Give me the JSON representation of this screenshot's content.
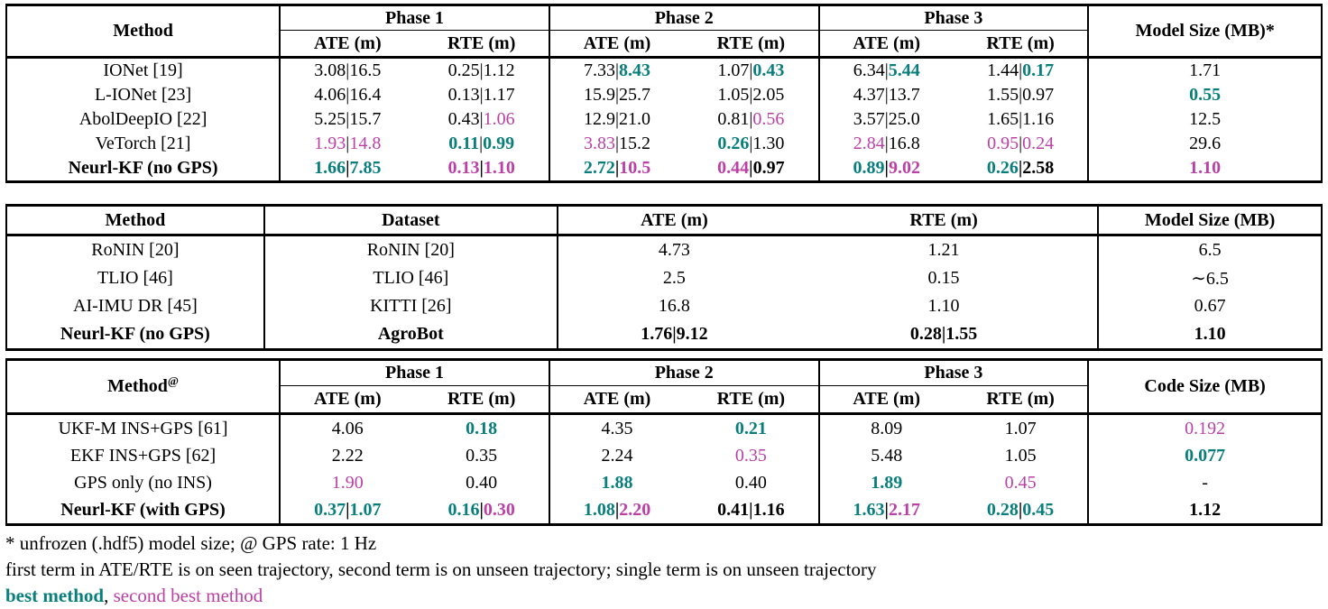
{
  "colors": {
    "best": "#087e7d",
    "second": "#bc3fa6",
    "text": "#000000"
  },
  "tables": [
    {
      "name": "phase-results-no-gps-table",
      "css": "t1",
      "kind": "phase",
      "method_header": "Method",
      "method_sup": "",
      "phases": [
        "Phase 1",
        "Phase 2",
        "Phase 3"
      ],
      "subheaders": [
        "ATE (m)",
        "RTE (m)",
        "ATE (m)",
        "RTE (m)",
        "ATE (m)",
        "RTE (m)"
      ],
      "last_col_header": "Model Size (MB)*",
      "rows": [
        {
          "method": "IONet [19]",
          "bold": false,
          "cells": [
            {
              "parts": [
                "3.08",
                "16.5"
              ],
              "styles": [
                "k",
                "k"
              ]
            },
            {
              "parts": [
                "0.25",
                "1.12"
              ],
              "styles": [
                "k",
                "k"
              ]
            },
            {
              "parts": [
                "7.33",
                "8.43"
              ],
              "styles": [
                "k",
                "b"
              ]
            },
            {
              "parts": [
                "1.07",
                "0.43"
              ],
              "styles": [
                "k",
                "b"
              ]
            },
            {
              "parts": [
                "6.34",
                "5.44"
              ],
              "styles": [
                "k",
                "b"
              ]
            },
            {
              "parts": [
                "1.44",
                "0.17"
              ],
              "styles": [
                "k",
                "b"
              ]
            },
            {
              "parts": [
                "1.71"
              ],
              "styles": [
                "k"
              ]
            }
          ]
        },
        {
          "method": "L-IONet [23]",
          "bold": false,
          "cells": [
            {
              "parts": [
                "4.06",
                "16.4"
              ],
              "styles": [
                "k",
                "k"
              ]
            },
            {
              "parts": [
                "0.13",
                "1.17"
              ],
              "styles": [
                "k",
                "k"
              ]
            },
            {
              "parts": [
                "15.9",
                "25.7"
              ],
              "styles": [
                "k",
                "k"
              ]
            },
            {
              "parts": [
                "1.05",
                "2.05"
              ],
              "styles": [
                "k",
                "k"
              ]
            },
            {
              "parts": [
                "4.37",
                "13.7"
              ],
              "styles": [
                "k",
                "k"
              ]
            },
            {
              "parts": [
                "1.55",
                "0.97"
              ],
              "styles": [
                "k",
                "k"
              ]
            },
            {
              "parts": [
                "0.55"
              ],
              "styles": [
                "b"
              ]
            }
          ]
        },
        {
          "method": "AbolDeepIO [22]",
          "bold": false,
          "cells": [
            {
              "parts": [
                "5.25",
                "15.7"
              ],
              "styles": [
                "k",
                "k"
              ]
            },
            {
              "parts": [
                "0.43",
                "1.06"
              ],
              "styles": [
                "k",
                "s"
              ]
            },
            {
              "parts": [
                "12.9",
                "21.0"
              ],
              "styles": [
                "k",
                "k"
              ]
            },
            {
              "parts": [
                "0.81",
                "0.56"
              ],
              "styles": [
                "k",
                "s"
              ]
            },
            {
              "parts": [
                "3.57",
                "25.0"
              ],
              "styles": [
                "k",
                "k"
              ]
            },
            {
              "parts": [
                "1.65",
                "1.16"
              ],
              "styles": [
                "k",
                "k"
              ]
            },
            {
              "parts": [
                "12.5"
              ],
              "styles": [
                "k"
              ]
            }
          ]
        },
        {
          "method": "VeTorch [21]",
          "bold": false,
          "cells": [
            {
              "parts": [
                "1.93",
                "14.8"
              ],
              "styles": [
                "s",
                "s"
              ]
            },
            {
              "parts": [
                "0.11",
                "0.99"
              ],
              "styles": [
                "b",
                "b"
              ]
            },
            {
              "parts": [
                "3.83",
                "15.2"
              ],
              "styles": [
                "s",
                "k"
              ]
            },
            {
              "parts": [
                "0.26",
                "1.30"
              ],
              "styles": [
                "b",
                "k"
              ]
            },
            {
              "parts": [
                "2.84",
                "16.8"
              ],
              "styles": [
                "s",
                "k"
              ]
            },
            {
              "parts": [
                "0.95",
                "0.24"
              ],
              "styles": [
                "s",
                "s"
              ]
            },
            {
              "parts": [
                "29.6"
              ],
              "styles": [
                "k"
              ]
            }
          ]
        },
        {
          "method": "Neurl-KF (no GPS)",
          "bold": true,
          "cells": [
            {
              "parts": [
                "1.66",
                "7.85"
              ],
              "styles": [
                "b",
                "b"
              ]
            },
            {
              "parts": [
                "0.13",
                "1.10"
              ],
              "styles": [
                "s",
                "s"
              ]
            },
            {
              "parts": [
                "2.72",
                "10.5"
              ],
              "styles": [
                "b",
                "s"
              ]
            },
            {
              "parts": [
                "0.44",
                "0.97"
              ],
              "styles": [
                "s",
                "k"
              ]
            },
            {
              "parts": [
                "0.89",
                "9.02"
              ],
              "styles": [
                "b",
                "s"
              ]
            },
            {
              "parts": [
                "0.26",
                "2.58"
              ],
              "styles": [
                "b",
                "k"
              ]
            },
            {
              "parts": [
                "1.10"
              ],
              "styles": [
                "s"
              ]
            }
          ]
        }
      ]
    },
    {
      "name": "dataset-results-table",
      "css": "t2",
      "kind": "flat",
      "headers": [
        "Method",
        "Dataset",
        "ATE (m)",
        "RTE (m)",
        "Model Size (MB)"
      ],
      "rows": [
        {
          "method": "RoNIN [20]",
          "bold": false,
          "cells": [
            {
              "parts": [
                "RoNIN [20]"
              ],
              "styles": [
                "k"
              ]
            },
            {
              "parts": [
                "4.73"
              ],
              "styles": [
                "k"
              ]
            },
            {
              "parts": [
                "1.21"
              ],
              "styles": [
                "k"
              ]
            },
            {
              "parts": [
                "6.5"
              ],
              "styles": [
                "k"
              ]
            }
          ]
        },
        {
          "method": "TLIO [46]",
          "bold": false,
          "cells": [
            {
              "parts": [
                "TLIO [46]"
              ],
              "styles": [
                "k"
              ]
            },
            {
              "parts": [
                "2.5"
              ],
              "styles": [
                "k"
              ]
            },
            {
              "parts": [
                "0.15"
              ],
              "styles": [
                "k"
              ]
            },
            {
              "parts": [
                "∼6.5"
              ],
              "styles": [
                "k"
              ]
            }
          ]
        },
        {
          "method": "AI-IMU DR [45]",
          "bold": false,
          "cells": [
            {
              "parts": [
                "KITTI [26]"
              ],
              "styles": [
                "k"
              ]
            },
            {
              "parts": [
                "16.8"
              ],
              "styles": [
                "k"
              ]
            },
            {
              "parts": [
                "1.10"
              ],
              "styles": [
                "k"
              ]
            },
            {
              "parts": [
                "0.67"
              ],
              "styles": [
                "k"
              ]
            }
          ]
        },
        {
          "method": "Neurl-KF (no GPS)",
          "bold": true,
          "cells": [
            {
              "parts": [
                "AgroBot"
              ],
              "styles": [
                "k"
              ]
            },
            {
              "parts": [
                "1.76",
                "9.12"
              ],
              "styles": [
                "k",
                "k"
              ]
            },
            {
              "parts": [
                "0.28",
                "1.55"
              ],
              "styles": [
                "k",
                "k"
              ]
            },
            {
              "parts": [
                "1.10"
              ],
              "styles": [
                "k"
              ]
            }
          ]
        }
      ]
    },
    {
      "name": "phase-results-gps-table",
      "css": "t3",
      "kind": "phase",
      "method_header": "Method",
      "method_sup": "@",
      "phases": [
        "Phase 1",
        "Phase 2",
        "Phase 3"
      ],
      "subheaders": [
        "ATE (m)",
        "RTE (m)",
        "ATE (m)",
        "RTE (m)",
        "ATE (m)",
        "RTE (m)"
      ],
      "last_col_header": "Code Size (MB)",
      "rows": [
        {
          "method": "UKF-M INS+GPS [61]",
          "bold": false,
          "cells": [
            {
              "parts": [
                "4.06"
              ],
              "styles": [
                "k"
              ]
            },
            {
              "parts": [
                "0.18"
              ],
              "styles": [
                "b"
              ]
            },
            {
              "parts": [
                "4.35"
              ],
              "styles": [
                "k"
              ]
            },
            {
              "parts": [
                "0.21"
              ],
              "styles": [
                "b"
              ]
            },
            {
              "parts": [
                "8.09"
              ],
              "styles": [
                "k"
              ]
            },
            {
              "parts": [
                "1.07"
              ],
              "styles": [
                "k"
              ]
            },
            {
              "parts": [
                "0.192"
              ],
              "styles": [
                "s"
              ]
            }
          ]
        },
        {
          "method": "EKF INS+GPS [62]",
          "bold": false,
          "cells": [
            {
              "parts": [
                "2.22"
              ],
              "styles": [
                "k"
              ]
            },
            {
              "parts": [
                "0.35"
              ],
              "styles": [
                "k"
              ]
            },
            {
              "parts": [
                "2.24"
              ],
              "styles": [
                "k"
              ]
            },
            {
              "parts": [
                "0.35"
              ],
              "styles": [
                "s"
              ]
            },
            {
              "parts": [
                "5.48"
              ],
              "styles": [
                "k"
              ]
            },
            {
              "parts": [
                "1.05"
              ],
              "styles": [
                "k"
              ]
            },
            {
              "parts": [
                "0.077"
              ],
              "styles": [
                "b"
              ]
            }
          ]
        },
        {
          "method": "GPS only (no INS)",
          "bold": false,
          "cells": [
            {
              "parts": [
                "1.90"
              ],
              "styles": [
                "s"
              ]
            },
            {
              "parts": [
                "0.40"
              ],
              "styles": [
                "k"
              ]
            },
            {
              "parts": [
                "1.88"
              ],
              "styles": [
                "b"
              ]
            },
            {
              "parts": [
                "0.40"
              ],
              "styles": [
                "k"
              ]
            },
            {
              "parts": [
                "1.89"
              ],
              "styles": [
                "b"
              ]
            },
            {
              "parts": [
                "0.45"
              ],
              "styles": [
                "s"
              ]
            },
            {
              "parts": [
                "-"
              ],
              "styles": [
                "k"
              ]
            }
          ]
        },
        {
          "method": "Neurl-KF (with GPS)",
          "bold": true,
          "cells": [
            {
              "parts": [
                "0.37",
                "1.07"
              ],
              "styles": [
                "b",
                "b"
              ]
            },
            {
              "parts": [
                "0.16",
                "0.30"
              ],
              "styles": [
                "b",
                "s"
              ]
            },
            {
              "parts": [
                "1.08",
                "2.20"
              ],
              "styles": [
                "b",
                "s"
              ]
            },
            {
              "parts": [
                "0.41",
                "1.16"
              ],
              "styles": [
                "k",
                "k"
              ]
            },
            {
              "parts": [
                "1.63",
                "2.17"
              ],
              "styles": [
                "b",
                "s"
              ]
            },
            {
              "parts": [
                "0.28",
                "0.45"
              ],
              "styles": [
                "b",
                "b"
              ]
            },
            {
              "parts": [
                "1.12"
              ],
              "styles": [
                "k"
              ]
            }
          ]
        }
      ]
    }
  ],
  "footnotes": {
    "line1": "* unfrozen (.hdf5) model size; @ GPS rate: 1 Hz",
    "line2": "first term in ATE/RTE is on seen trajectory, second term is on unseen trajectory; single term is on unseen trajectory",
    "line3_parts": [
      {
        "t": "best method",
        "c": "b"
      },
      {
        "t": ", ",
        "c": "k"
      },
      {
        "t": "second best method",
        "c": "s"
      }
    ]
  },
  "value_separator": "|"
}
